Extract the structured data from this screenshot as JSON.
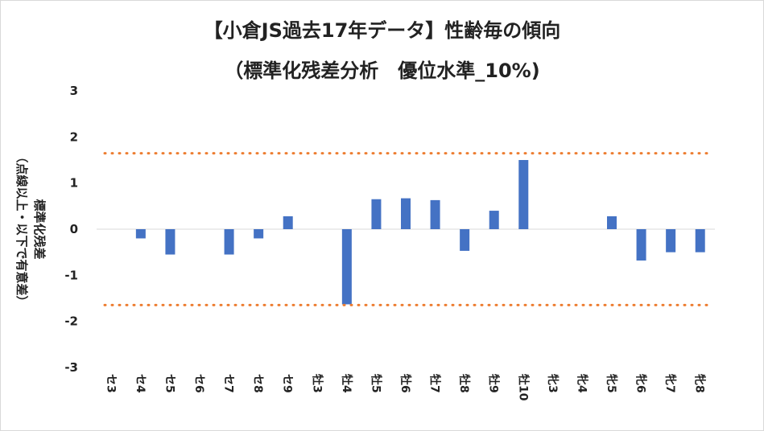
{
  "chart_data": {
    "type": "bar",
    "title": "【小倉JS過去17年データ】性齢毎の傾向",
    "subtitle": "（標準化残差分析　優位水準_10%)",
    "ylabel_line1": "標準化残差",
    "ylabel_line2": "（点線以上・以下で有意差）",
    "xlabel": "",
    "ylim": [
      -3,
      3
    ],
    "yticks": [
      "3",
      "2",
      "1",
      "0",
      "-1",
      "-2",
      "-3"
    ],
    "ytick_values": [
      3,
      2,
      1,
      0,
      -1,
      -2,
      -3
    ],
    "categories": [
      "セ3",
      "セ4",
      "セ5",
      "セ6",
      "セ7",
      "セ8",
      "セ9",
      "牡3",
      "牡4",
      "牡5",
      "牡6",
      "牡7",
      "牡8",
      "牡9",
      "牡10",
      "牝3",
      "牝4",
      "牝5",
      "牝6",
      "牝7",
      "牝8"
    ],
    "values": [
      0,
      -0.2,
      -0.55,
      0,
      -0.55,
      -0.2,
      0.28,
      0,
      -1.63,
      0.65,
      0.67,
      0.63,
      -0.47,
      0.4,
      1.5,
      0,
      0,
      0.28,
      -0.68,
      -0.5,
      -0.5
    ],
    "thresholds": [
      1.645,
      -1.645
    ],
    "bar_color": "#4472c4",
    "threshold_color": "#ed7d31",
    "grid": false
  }
}
